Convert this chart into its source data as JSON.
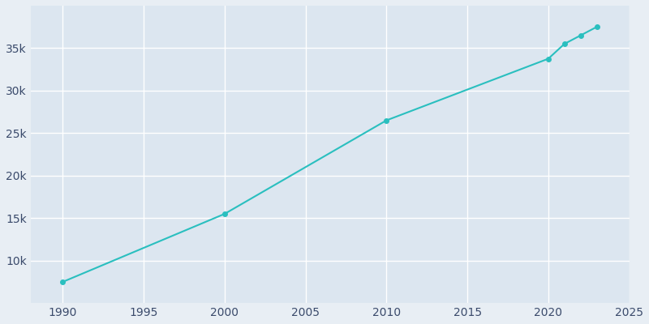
{
  "years": [
    1990,
    2000,
    2010,
    2020,
    2021,
    2022,
    2023
  ],
  "population": [
    7500,
    15500,
    26500,
    33750,
    35500,
    36500,
    37500
  ],
  "line_color": "#2ABFBF",
  "marker_color": "#2ABFBF",
  "bg_color": "#E8EEF4",
  "plot_bg_color": "#DCE6F0",
  "grid_color": "#FFFFFF",
  "tick_color": "#3A4A6B",
  "xlim": [
    1988,
    2025
  ],
  "ylim": [
    5000,
    40000
  ],
  "xticks": [
    1990,
    1995,
    2000,
    2005,
    2010,
    2015,
    2020,
    2025
  ],
  "yticks": [
    10000,
    15000,
    20000,
    25000,
    30000,
    35000
  ],
  "ytick_labels": [
    "10k",
    "15k",
    "20k",
    "25k",
    "30k",
    "35k"
  ]
}
